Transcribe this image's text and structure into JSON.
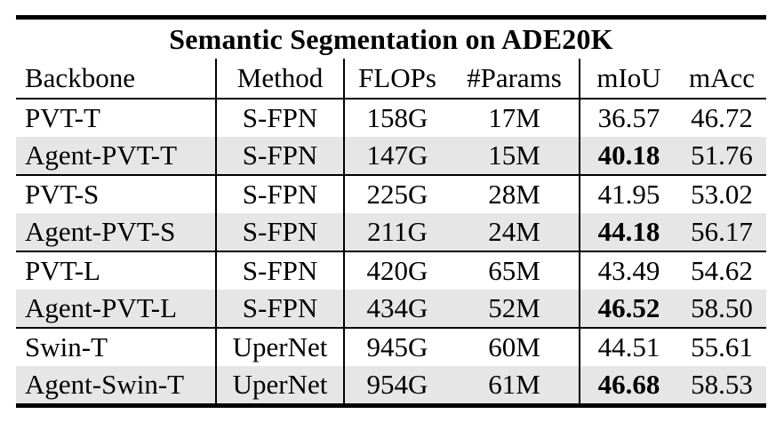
{
  "table": {
    "title": "Semantic Segmentation on ADE20K",
    "columns": [
      "Backbone",
      "Method",
      "FLOPs",
      "#Params",
      "mIoU",
      "mAcc"
    ],
    "rows": [
      {
        "backbone": "PVT-T",
        "method": "S-FPN",
        "flops": "158G",
        "params": "17M",
        "miou": "36.57",
        "macc": "46.72",
        "highlighted": false,
        "miou_bold": false
      },
      {
        "backbone": "Agent-PVT-T",
        "method": "S-FPN",
        "flops": "147G",
        "params": "15M",
        "miou": "40.18",
        "macc": "51.76",
        "highlighted": true,
        "miou_bold": true
      },
      {
        "backbone": "PVT-S",
        "method": "S-FPN",
        "flops": "225G",
        "params": "28M",
        "miou": "41.95",
        "macc": "53.02",
        "highlighted": false,
        "miou_bold": false
      },
      {
        "backbone": "Agent-PVT-S",
        "method": "S-FPN",
        "flops": "211G",
        "params": "24M",
        "miou": "44.18",
        "macc": "56.17",
        "highlighted": true,
        "miou_bold": true
      },
      {
        "backbone": "PVT-L",
        "method": "S-FPN",
        "flops": "420G",
        "params": "65M",
        "miou": "43.49",
        "macc": "54.62",
        "highlighted": false,
        "miou_bold": false
      },
      {
        "backbone": "Agent-PVT-L",
        "method": "S-FPN",
        "flops": "434G",
        "params": "52M",
        "miou": "46.52",
        "macc": "58.50",
        "highlighted": true,
        "miou_bold": true
      },
      {
        "backbone": "Swin-T",
        "method": "UperNet",
        "flops": "945G",
        "params": "60M",
        "miou": "44.51",
        "macc": "55.61",
        "highlighted": false,
        "miou_bold": false
      },
      {
        "backbone": "Agent-Swin-T",
        "method": "UperNet",
        "flops": "954G",
        "params": "61M",
        "miou": "46.68",
        "macc": "58.53",
        "highlighted": true,
        "miou_bold": true
      }
    ]
  },
  "colors": {
    "row_highlight": "#e6e6e6",
    "text": "#000000",
    "rule": "#000000"
  }
}
